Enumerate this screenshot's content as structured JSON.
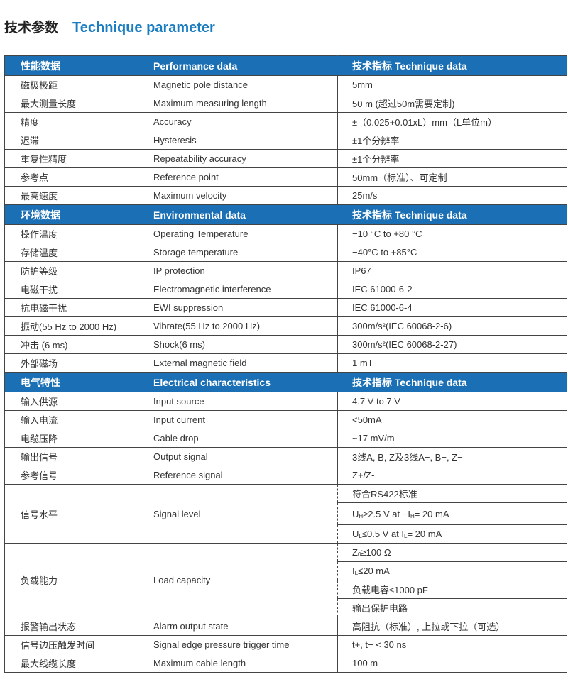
{
  "title": {
    "cn": "技术参数",
    "en": "Technique parameter"
  },
  "colors": {
    "header_bg": "#1b70b5",
    "title_blue": "#1a7cc1"
  },
  "sections": [
    {
      "header": [
        "性能数据",
        "Performance data",
        "技术指标   Technique data"
      ],
      "rows": [
        [
          "磁极极距",
          "Magnetic pole distance",
          "5mm"
        ],
        [
          "最大测量长度",
          "Maximum measuring length",
          "50 m (超过50m需要定制)"
        ],
        [
          "精度",
          "Accuracy",
          "±（0.025+0.01xL）mm（L单位m）"
        ],
        [
          "迟滞",
          "Hysteresis",
          "±1个分辨率"
        ],
        [
          "重复性精度",
          "Repeatability accuracy",
          "±1个分辨率"
        ],
        [
          "参考点",
          "Reference point",
          "50mm（标准）、可定制"
        ],
        [
          "最高速度",
          "Maximum velocity",
          "25m/s"
        ]
      ]
    },
    {
      "header": [
        "环境数据",
        "Environmental data",
        "技术指标   Technique data"
      ],
      "rows": [
        [
          "操作温度",
          "Operating Temperature",
          "−10 °C to +80 °C"
        ],
        [
          "存储温度",
          "Storage temperature",
          "−40°C to +85°C"
        ],
        [
          "防护等级",
          "IP protection",
          "IP67"
        ],
        [
          "电磁干扰",
          "Electromagnetic interference",
          "IEC 61000-6-2"
        ],
        [
          "抗电磁干扰",
          "EWI suppression",
          "IEC 61000-6-4"
        ],
        [
          "振动(55 Hz to 2000 Hz)",
          "Vibrate(55 Hz to 2000 Hz)",
          "300m/s²(IEC 60068-2-6)"
        ],
        [
          "冲击 (6 ms)",
          "Shock(6 ms)",
          "300m/s²(IEC 60068-2-27)"
        ],
        [
          "外部磁场",
          "External magnetic field",
          "1 mT"
        ]
      ]
    },
    {
      "header": [
        "电气特性",
        "Electrical characteristics",
        "技术指标   Technique data"
      ],
      "rows": [
        [
          "输入供源",
          "Input source",
          "4.7 V to 7 V"
        ],
        [
          "输入电流",
          "Input current",
          "<50mA"
        ],
        [
          "电缆压降",
          "Cable drop",
          "~17 mV/m"
        ],
        [
          "输出信号",
          "Output signal",
          "3线A, B, Z及3线A−, B−, Z−"
        ],
        [
          "参考信号",
          "Reference signal",
          "Z+/Z-"
        ]
      ],
      "signal_level": {
        "label_cn": "信号水平",
        "label_en": "Signal level",
        "values": [
          "符合RS422标准",
          "U",
          "H",
          "≥2.5 V at −I",
          "H",
          "= 20 mA",
          "U",
          "L",
          "≤0.5 V at I",
          "L",
          "= 20 mA"
        ]
      },
      "load_capacity": {
        "label_cn": "负载能力",
        "label_en": "Load capacity",
        "values": [
          "Z",
          "0",
          "≥100 Ω",
          "I",
          "L",
          "≤20 mA",
          "负载电容≤1000 pF",
          "输出保护电路"
        ]
      },
      "rows_after": [
        [
          "报警输出状态",
          "Alarm output state",
          "高阻抗（标准）, 上拉或下拉（可选）"
        ],
        [
          "信号边压触发时间",
          "Signal edge pressure trigger time",
          "t+, t− < 30 ns"
        ],
        [
          "最大线缆长度",
          "Maximum cable length",
          "100 m"
        ]
      ]
    }
  ]
}
